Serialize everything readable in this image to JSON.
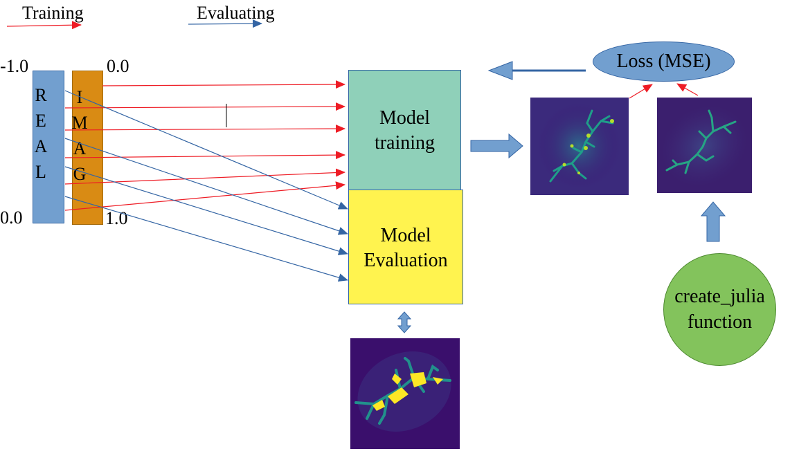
{
  "legend": {
    "training_label": "Training",
    "evaluating_label": "Evaluating",
    "training_color": "#ee1c25",
    "evaluating_color": "#3465a4"
  },
  "inputs": {
    "real_letters": [
      "R",
      "E",
      "A",
      "L"
    ],
    "imag_letters": [
      "I",
      "M",
      "A",
      "G"
    ],
    "real_top": "-1.0",
    "real_bottom": "0.0",
    "imag_top": "0.0",
    "imag_bottom": "1.0",
    "real_color": "#729fcf",
    "imag_color": "#d98b14"
  },
  "nodes": {
    "training_line1": "Model",
    "training_line2": "training",
    "evaluation_line1": "Model",
    "evaluation_line2": "Evaluation",
    "loss": "Loss (MSE)",
    "julia_line1": "create_julia",
    "julia_line2": "function",
    "training_color": "#8fd0b9",
    "evaluation_color": "#fff34f",
    "loss_color": "#729fcf",
    "julia_color": "#83c35c"
  },
  "icons": [
    "predicted-fractal-image",
    "target-fractal-image",
    "evaluated-fractal-image"
  ]
}
